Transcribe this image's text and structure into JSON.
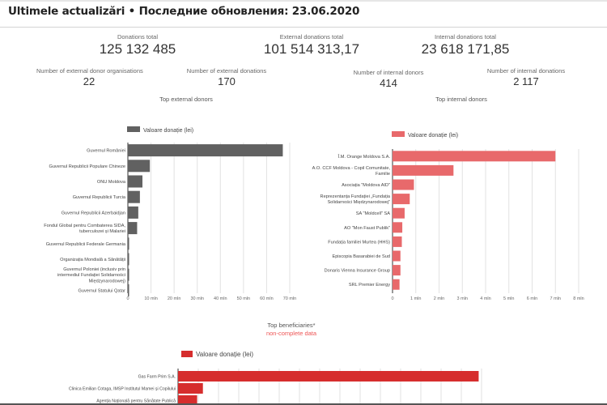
{
  "header": {
    "title": "Ultimele actualizări • Последние обновления: 23.06.2020"
  },
  "kpis": {
    "donations_total": {
      "label": "Donations total",
      "value": "125 132 485"
    },
    "external_total": {
      "label": "External donations total",
      "value": "101 514 313,17"
    },
    "internal_total": {
      "label": "Internal donations total",
      "value": "23 618 171,85"
    },
    "ext_donor_orgs": {
      "label": "Number of external donor organisations",
      "value": "22"
    },
    "ext_donations": {
      "label": "Number of external donations",
      "value": "170"
    },
    "int_donors": {
      "label": "Number of internal donors",
      "value": "414"
    },
    "int_donations": {
      "label": "Number of internal donations",
      "value": "2 117"
    }
  },
  "sections": {
    "top_external": "Top external donors",
    "top_internal": "Top internal donors",
    "top_beneficiaries": "Top beneficiaries*",
    "beneficiaries_note": "non-complete data"
  },
  "chart_data": [
    {
      "type": "bar",
      "orientation": "horizontal",
      "title": "Top external donors",
      "legend": "Valoare donație (lei)",
      "legend_position": "top",
      "color": "#616161",
      "categories": [
        "Guvernul României",
        "Guvernul Republicii Populare Chineze",
        "ONU Moldova",
        "Guvernul Republicii Turcia",
        "Guvernul Republicii Azerbaidjan",
        "Fondul Global pentru Combaterea SIDA, tuberculozei și Malariei",
        "Guvernul Republicii Federale Germania",
        "Organizația Mondială a Sănătății",
        "Guvernul Poloniei (inclusiv prin intermediul Fundației Solidarności Międzynarodowej)",
        "Guvernul Statului Qatar"
      ],
      "values": [
        67000000,
        9500000,
        6300000,
        5200000,
        4500000,
        4000000,
        300000,
        100000,
        80000,
        50000
      ],
      "xlim": [
        0,
        70000000
      ],
      "xticks": [
        "0",
        "10 mln",
        "20 mln",
        "30 mln",
        "40 mln",
        "50 mln",
        "60 mln",
        "70 mln"
      ],
      "grid": true
    },
    {
      "type": "bar",
      "orientation": "horizontal",
      "title": "Top internal donors",
      "legend": "Valoare donație (lei)",
      "legend_position": "top",
      "color": "#e8696b",
      "categories": [
        "Î.M. Orange Moldova S.A.",
        "A.O. CCF Moldova - Copil Comunitate, Familie",
        "Asociația \"Moldova AID\"",
        "Reprezentanța Fundației „Fundația Solidarności Międzynarodowej”",
        "SA \"Moldcell\" SA",
        "AO \"Mon Faust Publik\"",
        "Fundația familiei Murtea (HHS)",
        "Episcopia Basarabiei de Sud",
        "Donaris Vienna Insurance Group",
        "SRL Premier Energy"
      ],
      "values": [
        7000000,
        2620000,
        920000,
        740000,
        520000,
        420000,
        400000,
        340000,
        340000,
        300000
      ],
      "xlim": [
        0,
        8000000
      ],
      "xticks": [
        "0",
        "1 mln",
        "2 mln",
        "3 mln",
        "4 mln",
        "5 mln",
        "6 mln",
        "7 mln",
        "8 mln"
      ],
      "grid": true
    },
    {
      "type": "bar",
      "orientation": "horizontal",
      "title": "Top beneficiaries*",
      "subtitle": "non-complete data",
      "legend": "Valoare donație (lei)",
      "legend_position": "top",
      "color": "#d62d2d",
      "categories": [
        "Gas Farm Prim S.A.",
        "Clinica Emilian Cotaga, IMSP Institutul Mamei și Copilului",
        "Agenția Națională pentru Sănătate Publică"
      ],
      "values": [
        52000000,
        4300000,
        3300000
      ],
      "grid": true
    }
  ]
}
